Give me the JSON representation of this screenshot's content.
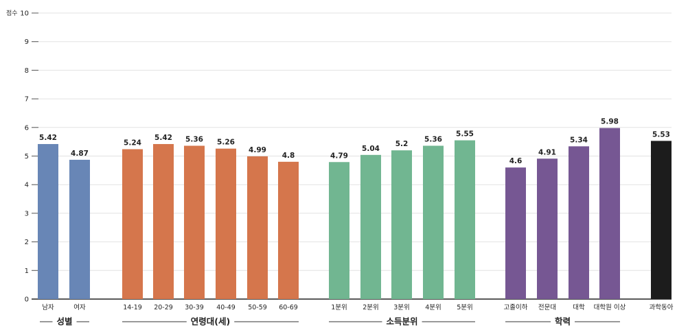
{
  "chart_data": {
    "type": "bar",
    "y_unit_label": "점수",
    "ylim": [
      0,
      10
    ],
    "y_ticks": [
      0,
      1,
      2,
      3,
      4,
      5,
      6,
      7,
      8,
      9,
      10
    ],
    "grid": true,
    "groups": [
      {
        "label": "성별",
        "color": "#6886b6",
        "categories": [
          "남자",
          "여자"
        ],
        "values": [
          5.42,
          4.87
        ]
      },
      {
        "label": "연령대(세)",
        "color": "#d5764c",
        "categories": [
          "14-19",
          "20-29",
          "30-39",
          "40-49",
          "50-59",
          "60-69"
        ],
        "values": [
          5.24,
          5.42,
          5.36,
          5.26,
          4.99,
          4.8
        ]
      },
      {
        "label": "소득분위",
        "color": "#71b691",
        "categories": [
          "1분위",
          "2분위",
          "3분위",
          "4분위",
          "5분위"
        ],
        "values": [
          4.79,
          5.04,
          5.2,
          5.36,
          5.55
        ]
      },
      {
        "label": "학력",
        "color": "#765793",
        "categories": [
          "고졸이하",
          "전문대",
          "대학",
          "대학원 이상"
        ],
        "values": [
          4.6,
          4.91,
          5.34,
          5.98
        ]
      },
      {
        "label": "",
        "color": "#1c1c1c",
        "categories": [
          "과학동아"
        ],
        "values": [
          5.53
        ]
      }
    ]
  }
}
